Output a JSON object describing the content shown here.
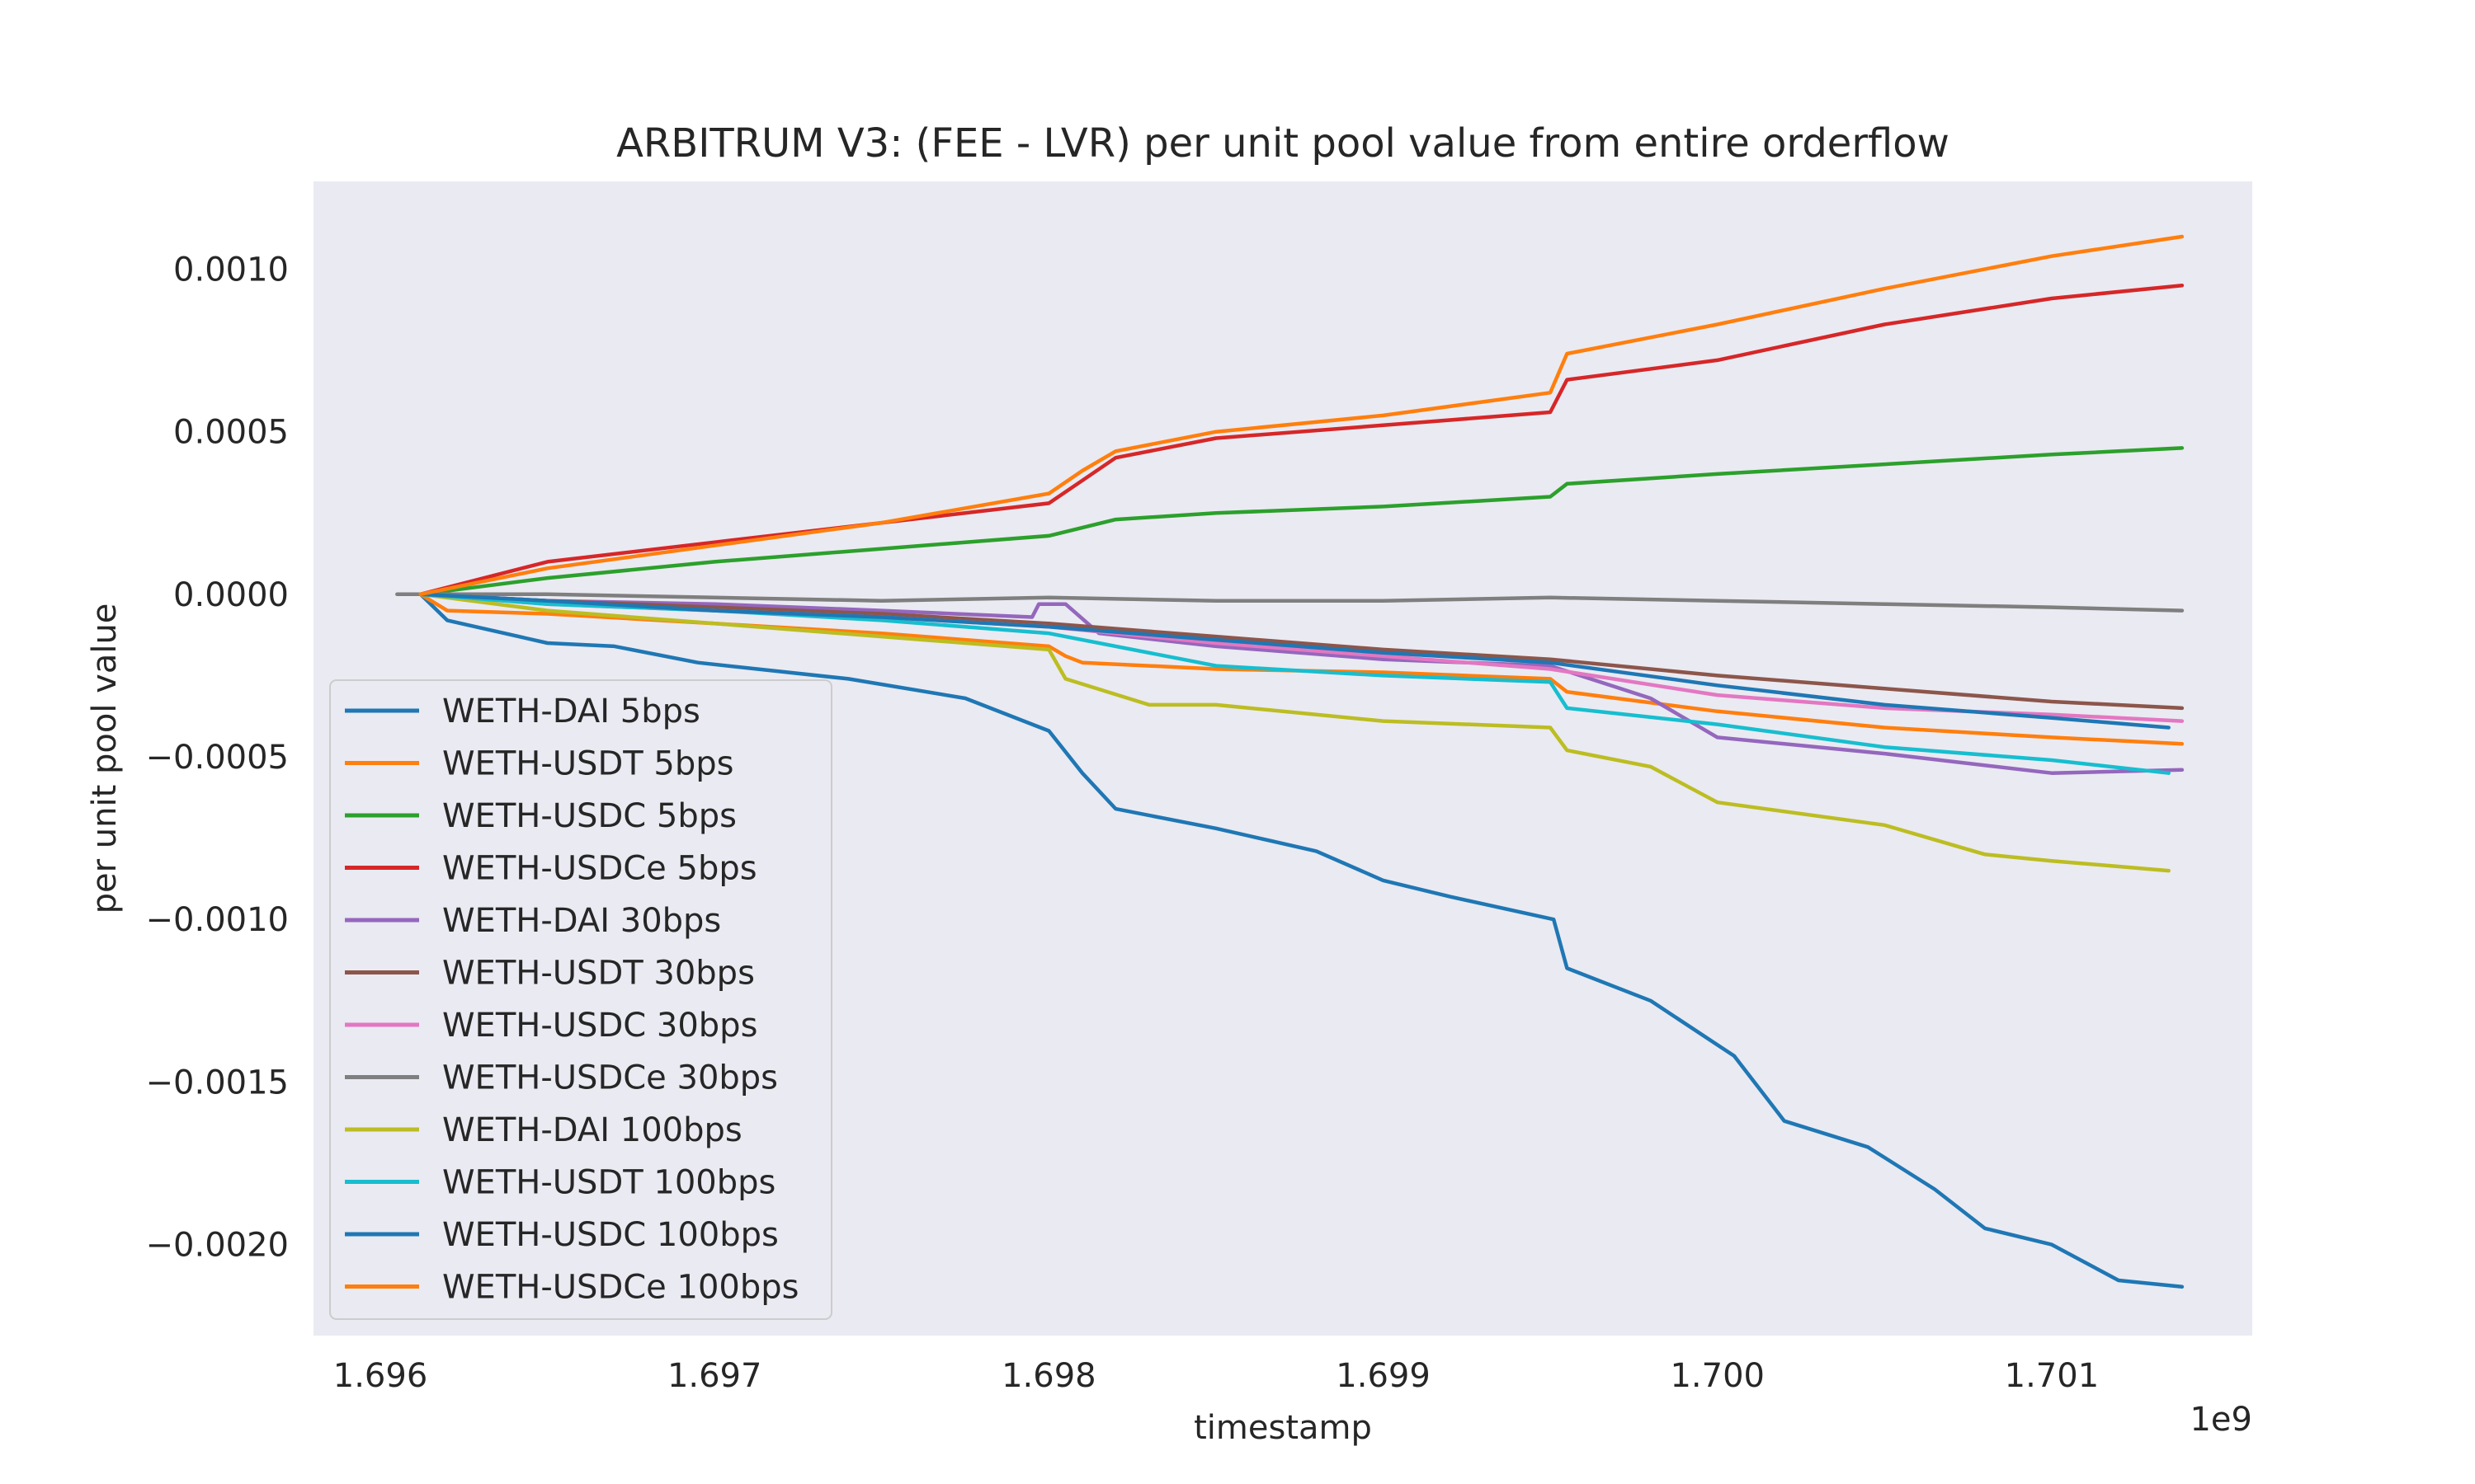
{
  "chart_data": {
    "type": "line",
    "title": "ARBITRUM V3: (FEE - LVR) per unit pool value from entire orderflow",
    "xlabel": "timestamp",
    "ylabel": "per unit pool value",
    "x_offset_label": "1e9",
    "xlim": [
      1.6958,
      1.7016
    ],
    "ylim": [
      -0.00228,
      0.00127
    ],
    "xticks": [
      "1.696",
      "1.697",
      "1.698",
      "1.699",
      "1.700",
      "1.701"
    ],
    "xtick_values": [
      1.696,
      1.697,
      1.698,
      1.699,
      1.7,
      1.701
    ],
    "yticks": [
      "0.0010",
      "0.0005",
      "0.0000",
      "−0.0005",
      "−0.0010",
      "−0.0015",
      "−0.0020"
    ],
    "ytick_values": [
      0.001,
      0.0005,
      0.0,
      -0.0005,
      -0.001,
      -0.0015,
      -0.002
    ],
    "grid": false,
    "background": "#eaeaf2",
    "legend_position": "lower-left",
    "series": [
      {
        "name": "WETH-DAI 5bps",
        "color": "#1f77b4",
        "x": [
          1.69612,
          1.6962,
          1.6965,
          1.6967,
          1.69695,
          1.6974,
          1.69775,
          1.698,
          1.6981,
          1.6982,
          1.6985,
          1.6988,
          1.699,
          1.6992,
          1.69951,
          1.69955,
          1.6998,
          1.70005,
          1.7002,
          1.70045,
          1.70065,
          1.7008,
          1.701,
          1.7012,
          1.70139
        ],
        "y": [
          0.0,
          -8e-05,
          -0.00015,
          -0.00016,
          -0.00021,
          -0.00026,
          -0.00032,
          -0.00042,
          -0.00055,
          -0.00066,
          -0.00072,
          -0.00079,
          -0.00088,
          -0.00093,
          -0.001,
          -0.00115,
          -0.00125,
          -0.00142,
          -0.00162,
          -0.0017,
          -0.00183,
          -0.00195,
          -0.002,
          -0.00211,
          -0.00213
        ]
      },
      {
        "name": "WETH-USDT 5bps",
        "color": "#ff7f0e",
        "x": [
          1.69612,
          1.6962,
          1.6965,
          1.697,
          1.6975,
          1.698,
          1.69805,
          1.6981,
          1.6985,
          1.699,
          1.6995,
          1.69955,
          1.7,
          1.7005,
          1.701,
          1.70139
        ],
        "y": [
          0.0,
          -5e-05,
          -6e-05,
          -9e-05,
          -0.00012,
          -0.00016,
          -0.00019,
          -0.00021,
          -0.00023,
          -0.00024,
          -0.00026,
          -0.0003,
          -0.00036,
          -0.00041,
          -0.00044,
          -0.00046
        ]
      },
      {
        "name": "WETH-USDC 5bps",
        "color": "#2ca02c",
        "x": [
          1.69612,
          1.6965,
          1.697,
          1.6975,
          1.698,
          1.6982,
          1.6985,
          1.699,
          1.6995,
          1.69955,
          1.7,
          1.7005,
          1.701,
          1.70139
        ],
        "y": [
          0.0,
          5e-05,
          0.0001,
          0.00014,
          0.00018,
          0.00023,
          0.00025,
          0.00027,
          0.0003,
          0.00034,
          0.00037,
          0.0004,
          0.00043,
          0.00045
        ]
      },
      {
        "name": "WETH-USDCe 5bps",
        "color": "#d62728",
        "x": [
          1.69612,
          1.6965,
          1.697,
          1.6975,
          1.698,
          1.6981,
          1.6982,
          1.6985,
          1.699,
          1.6995,
          1.69955,
          1.7,
          1.7005,
          1.701,
          1.70139
        ],
        "y": [
          0.0,
          0.0001,
          0.00016,
          0.00022,
          0.00028,
          0.00035,
          0.00042,
          0.00048,
          0.00052,
          0.00056,
          0.00066,
          0.00072,
          0.00083,
          0.00091,
          0.00095
        ]
      },
      {
        "name": "WETH-DAI 30bps",
        "color": "#9467bd",
        "x": [
          1.69612,
          1.6965,
          1.697,
          1.6975,
          1.69795,
          1.69797,
          1.69805,
          1.69815,
          1.6985,
          1.699,
          1.6995,
          1.6998,
          1.7,
          1.7005,
          1.701,
          1.70139
        ],
        "y": [
          0.0,
          -2e-05,
          -3e-05,
          -5e-05,
          -7e-05,
          -3e-05,
          -3e-05,
          -0.00012,
          -0.00016,
          -0.0002,
          -0.00022,
          -0.00032,
          -0.00044,
          -0.00049,
          -0.00055,
          -0.00054
        ]
      },
      {
        "name": "WETH-USDT 30bps",
        "color": "#8c564b",
        "x": [
          1.69612,
          1.6965,
          1.697,
          1.6975,
          1.698,
          1.6985,
          1.699,
          1.6995,
          1.7,
          1.7005,
          1.701,
          1.70139
        ],
        "y": [
          0.0,
          -2e-05,
          -4e-05,
          -6e-05,
          -9e-05,
          -0.00013,
          -0.00017,
          -0.0002,
          -0.00025,
          -0.00029,
          -0.00033,
          -0.00035
        ]
      },
      {
        "name": "WETH-USDC 30bps",
        "color": "#e377c2",
        "x": [
          1.69612,
          1.6965,
          1.697,
          1.6975,
          1.698,
          1.6985,
          1.699,
          1.6995,
          1.7,
          1.7005,
          1.701,
          1.70139
        ],
        "y": [
          0.0,
          -3e-05,
          -5e-05,
          -7e-05,
          -0.0001,
          -0.00015,
          -0.00019,
          -0.00023,
          -0.00031,
          -0.00035,
          -0.00037,
          -0.00039
        ]
      },
      {
        "name": "WETH-USDCe 30bps",
        "color": "#7f7f7f",
        "x": [
          1.69605,
          1.6965,
          1.697,
          1.6975,
          1.698,
          1.6985,
          1.699,
          1.6995,
          1.7,
          1.7005,
          1.701,
          1.70139
        ],
        "y": [
          0.0,
          0.0,
          -1e-05,
          -2e-05,
          -1e-05,
          -2e-05,
          -2e-05,
          -1e-05,
          -2e-05,
          -3e-05,
          -4e-05,
          -5e-05
        ]
      },
      {
        "name": "WETH-DAI 100bps",
        "color": "#bcbd22",
        "x": [
          1.69612,
          1.6965,
          1.697,
          1.6975,
          1.698,
          1.69805,
          1.6983,
          1.6985,
          1.699,
          1.6995,
          1.69955,
          1.6998,
          1.7,
          1.7005,
          1.7008,
          1.701,
          1.70135
        ],
        "y": [
          0.0,
          -5e-05,
          -9e-05,
          -0.00013,
          -0.00017,
          -0.00026,
          -0.00034,
          -0.00034,
          -0.00039,
          -0.00041,
          -0.00048,
          -0.00053,
          -0.00064,
          -0.00071,
          -0.0008,
          -0.00082,
          -0.00085
        ]
      },
      {
        "name": "WETH-USDT 100bps",
        "color": "#17becf",
        "x": [
          1.69612,
          1.6965,
          1.697,
          1.6975,
          1.698,
          1.6985,
          1.699,
          1.6995,
          1.69955,
          1.7,
          1.7005,
          1.701,
          1.70135
        ],
        "y": [
          0.0,
          -3e-05,
          -5e-05,
          -8e-05,
          -0.00012,
          -0.00022,
          -0.00025,
          -0.00027,
          -0.00035,
          -0.0004,
          -0.00047,
          -0.00051,
          -0.00055
        ]
      },
      {
        "name": "WETH-USDC 100bps",
        "color": "#1f77b4",
        "x": [
          1.69612,
          1.6965,
          1.697,
          1.6975,
          1.698,
          1.6985,
          1.699,
          1.6995,
          1.7,
          1.7005,
          1.701,
          1.70135
        ],
        "y": [
          0.0,
          -2e-05,
          -5e-05,
          -7e-05,
          -0.0001,
          -0.00014,
          -0.00018,
          -0.00021,
          -0.00028,
          -0.00034,
          -0.00038,
          -0.00041
        ]
      },
      {
        "name": "WETH-USDCe 100bps",
        "color": "#ff7f0e",
        "x": [
          1.69612,
          1.6965,
          1.697,
          1.6975,
          1.698,
          1.6981,
          1.6982,
          1.6985,
          1.699,
          1.6995,
          1.69955,
          1.7,
          1.7005,
          1.701,
          1.70139
        ],
        "y": [
          0.0,
          8e-05,
          0.00015,
          0.00022,
          0.00031,
          0.00038,
          0.00044,
          0.0005,
          0.00055,
          0.00062,
          0.00074,
          0.00083,
          0.00094,
          0.00104,
          0.0011
        ]
      }
    ]
  }
}
